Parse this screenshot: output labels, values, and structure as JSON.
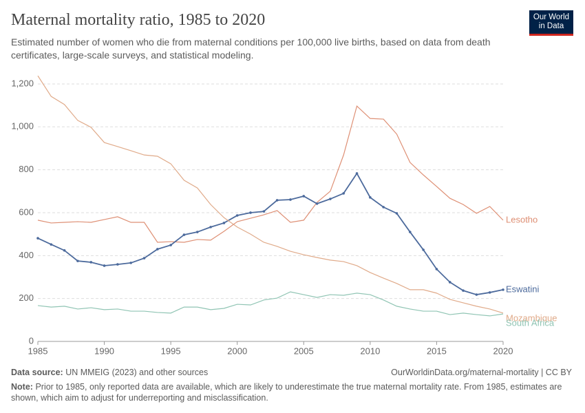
{
  "chart_data": {
    "type": "line",
    "title": "Maternal mortality ratio, 1985 to 2020",
    "subtitle": "Estimated number of women who die from maternal conditions per 100,000 live births, based on data from death certificates, large-scale surveys, and statistical modeling.",
    "logo": [
      "Our World",
      "in Data"
    ],
    "source_label": "Data source:",
    "source": "UN MMEIG (2023) and other sources",
    "url": "OurWorldinData.org/maternal-mortality | CC BY",
    "note_label": "Note:",
    "note": "Prior to 1985, only reported data are available, which are likely to underestimate the true maternal mortality rate. From 1985, estimates are shown, which aim to adjust for underreporting and misclassification.",
    "x": [
      1985,
      1986,
      1987,
      1988,
      1989,
      1990,
      1991,
      1992,
      1993,
      1994,
      1995,
      1996,
      1997,
      1998,
      1999,
      2000,
      2001,
      2002,
      2003,
      2004,
      2005,
      2006,
      2007,
      2008,
      2009,
      2010,
      2011,
      2012,
      2013,
      2014,
      2015,
      2016,
      2017,
      2018,
      2019,
      2020
    ],
    "xlim": [
      1985,
      2020
    ],
    "xticks": [
      1985,
      1990,
      1995,
      2000,
      2005,
      2010,
      2015,
      2020
    ],
    "ylim": [
      0,
      1240
    ],
    "yticks": [
      0,
      200,
      400,
      600,
      800,
      {
        "value": 1000,
        "label": "1,000"
      },
      {
        "value": 1200,
        "label": "1,200"
      }
    ],
    "grid": true,
    "series": [
      {
        "name": "Lesotho",
        "color": "#de8f74",
        "markers": false,
        "values": [
          565,
          552,
          555,
          558,
          555,
          568,
          581,
          555,
          555,
          462,
          465,
          462,
          475,
          472,
          513,
          558,
          574,
          590,
          610,
          555,
          565,
          648,
          700,
          869,
          1097,
          1039,
          1036,
          966,
          834,
          776,
          722,
          667,
          638,
          597,
          629,
          565
        ]
      },
      {
        "name": "Eswatini",
        "color": "#4c6a9c",
        "markers": true,
        "values": [
          481,
          452,
          424,
          375,
          369,
          353,
          359,
          366,
          388,
          430,
          449,
          497,
          510,
          533,
          552,
          587,
          600,
          606,
          658,
          661,
          677,
          642,
          664,
          690,
          783,
          671,
          626,
          597,
          510,
          427,
          337,
          276,
          237,
          218,
          228,
          241
        ]
      },
      {
        "name": "Mozambique",
        "color": "#e0aa89",
        "markers": false,
        "values": [
          1238,
          1142,
          1104,
          1030,
          998,
          927,
          908,
          889,
          869,
          863,
          828,
          751,
          715,
          638,
          577,
          533,
          500,
          462,
          443,
          420,
          404,
          391,
          379,
          372,
          353,
          321,
          295,
          270,
          241,
          241,
          225,
          196,
          180,
          164,
          151,
          132
        ]
      },
      {
        "name": "South Africa",
        "color": "#8fc4b3",
        "markers": false,
        "values": [
          167,
          160,
          164,
          151,
          157,
          148,
          151,
          141,
          141,
          135,
          132,
          160,
          160,
          148,
          154,
          173,
          170,
          193,
          202,
          231,
          218,
          205,
          218,
          215,
          225,
          218,
          193,
          164,
          151,
          141,
          141,
          125,
          132,
          125,
          119,
          128
        ]
      }
    ]
  }
}
